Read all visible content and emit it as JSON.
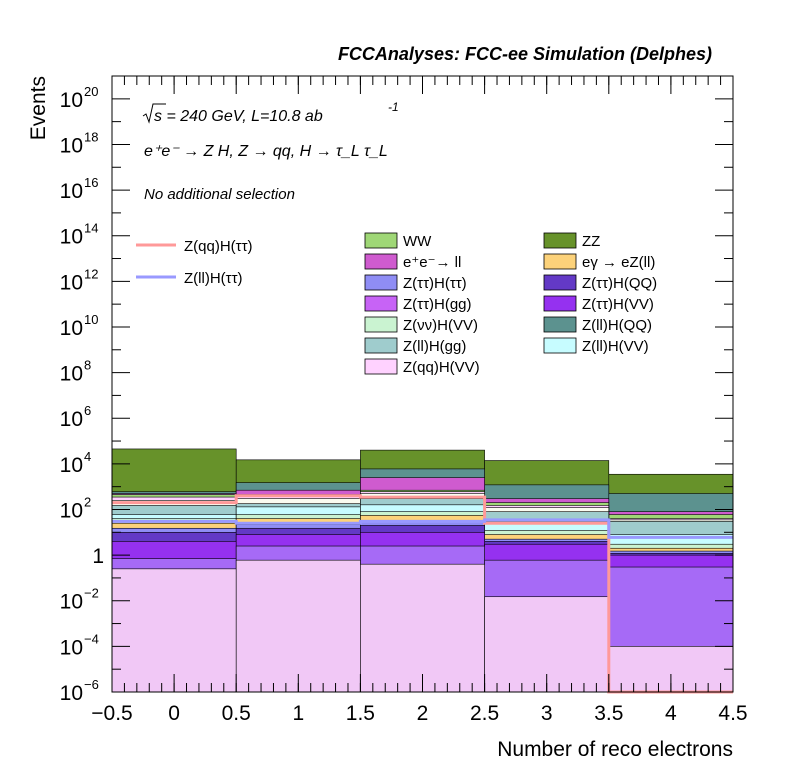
{
  "chart_data": {
    "type": "bar",
    "stacked": true,
    "log_y": true,
    "title": "FCCAnalyses: FCC-ee Simulation (Delphes)",
    "xlabel": "Number of reco electrons",
    "ylabel": "Events",
    "xlim": [
      -0.5,
      4.5
    ],
    "ylim": [
      1e-06,
      1e+21
    ],
    "x_bin_edges": [
      -0.5,
      0.5,
      1.5,
      2.5,
      3.5,
      4.5
    ],
    "x_ticks": [
      "−0.5",
      "0",
      "0.5",
      "1",
      "1.5",
      "2",
      "2.5",
      "3",
      "3.5",
      "4",
      "4.5"
    ],
    "y_ticks": [
      {
        "base": "10",
        "exp": "−6"
      },
      {
        "base": "10",
        "exp": "−4"
      },
      {
        "base": "10",
        "exp": "−2"
      },
      {
        "base": "1",
        "exp": ""
      },
      {
        "base": "10",
        "exp": "2"
      },
      {
        "base": "10",
        "exp": "4"
      },
      {
        "base": "10",
        "exp": "6"
      },
      {
        "base": "10",
        "exp": "8"
      },
      {
        "base": "10",
        "exp": "10"
      },
      {
        "base": "10",
        "exp": "12"
      },
      {
        "base": "10",
        "exp": "14"
      },
      {
        "base": "10",
        "exp": "16"
      },
      {
        "base": "10",
        "exp": "18"
      },
      {
        "base": "10",
        "exp": "20"
      }
    ],
    "annotations": {
      "sqrt_s": "s",
      "energy_lumi": " = 240 GeV, L=10.8 ab",
      "lumi_exp": "-1",
      "process": "e⁺e⁻ → Z H, Z → qq, H → τ_L τ_L",
      "selection": "No additional selection"
    },
    "stack_top_levels": [
      {
        "color": "#f1c8f6",
        "values": [
          0.25,
          0.6,
          0.4,
          0.015,
          0.0001
        ]
      },
      {
        "color": "#a66af6",
        "values": [
          0.7,
          2.5,
          2.5,
          0.6,
          0.3
        ]
      },
      {
        "color": "#9531f0",
        "values": [
          4,
          8,
          10,
          3,
          1
        ]
      },
      {
        "color": "#6339c6",
        "values": [
          10,
          15,
          20,
          4,
          1.2
        ]
      },
      {
        "color": "#8f8df5",
        "values": [
          15,
          22,
          30,
          5,
          1.5
        ]
      },
      {
        "color": "#fcd27a",
        "values": [
          25,
          40,
          55,
          8,
          2
        ]
      },
      {
        "color": "#caf3d1",
        "values": [
          40,
          60,
          80,
          12,
          3
        ]
      },
      {
        "color": "#c7fcff",
        "values": [
          60,
          130,
          160,
          30,
          8
        ]
      },
      {
        "color": "#9fcccd",
        "values": [
          150,
          180,
          300,
          80,
          30
        ]
      },
      {
        "color": "#fbfcf0",
        "values": [
          250,
          300,
          500,
          120,
          35
        ]
      },
      {
        "color": "#ffd2ff",
        "values": [
          350,
          400,
          600,
          150,
          40
        ]
      },
      {
        "color": "#9fd776",
        "values": [
          450,
          450,
          700,
          200,
          60
        ]
      },
      {
        "color": "#cf5bcf",
        "values": [
          500,
          700,
          2500,
          300,
          80
        ]
      },
      {
        "color": "#5c928f",
        "values": [
          600,
          1500,
          6000,
          1200,
          500
        ]
      },
      {
        "color": "#67922a",
        "values": [
          45000,
          15000,
          40000,
          14000,
          3500
        ]
      }
    ],
    "series": [
      {
        "name": "WW",
        "color": "#9fd776",
        "style": "fill"
      },
      {
        "name": "ZZ",
        "color": "#67922a",
        "style": "fill"
      },
      {
        "name": "e⁺e⁻→ ll",
        "color": "#cf5bcf",
        "style": "fill"
      },
      {
        "name": "eγ → eZ(ll)",
        "color": "#fcd27a",
        "style": "fill"
      },
      {
        "name": "Z(ττ)H(ττ)",
        "color": "#8f8df5",
        "style": "fill"
      },
      {
        "name": "Z(ττ)H(QQ)",
        "color": "#6339c6",
        "style": "fill"
      },
      {
        "name": "Z(ττ)H(gg)",
        "color": "#c763f6",
        "style": "fill"
      },
      {
        "name": "Z(ττ)H(VV)",
        "color": "#9531f0",
        "style": "fill"
      },
      {
        "name": "Z(νν)H(VV)",
        "color": "#caf3d1",
        "style": "fill"
      },
      {
        "name": "Z(ll)H(QQ)",
        "color": "#5c928f",
        "style": "fill"
      },
      {
        "name": "Z(ll)H(gg)",
        "color": "#9fcccd",
        "style": "fill"
      },
      {
        "name": "Z(ll)H(VV)",
        "color": "#c7fcff",
        "style": "fill"
      },
      {
        "name": "Z(qq)H(VV)",
        "color": "#ffd2ff",
        "style": "fill"
      },
      {
        "name": "Z(qq)H(ττ)",
        "color": "#ff9999",
        "style": "line",
        "values": [
          200,
          400,
          350,
          25,
          1e-06
        ]
      },
      {
        "name": "Z(ll)H(ττ)",
        "color": "#9999ff",
        "style": "line",
        "values": [
          30,
          25,
          30,
          35,
          6
        ]
      }
    ]
  }
}
